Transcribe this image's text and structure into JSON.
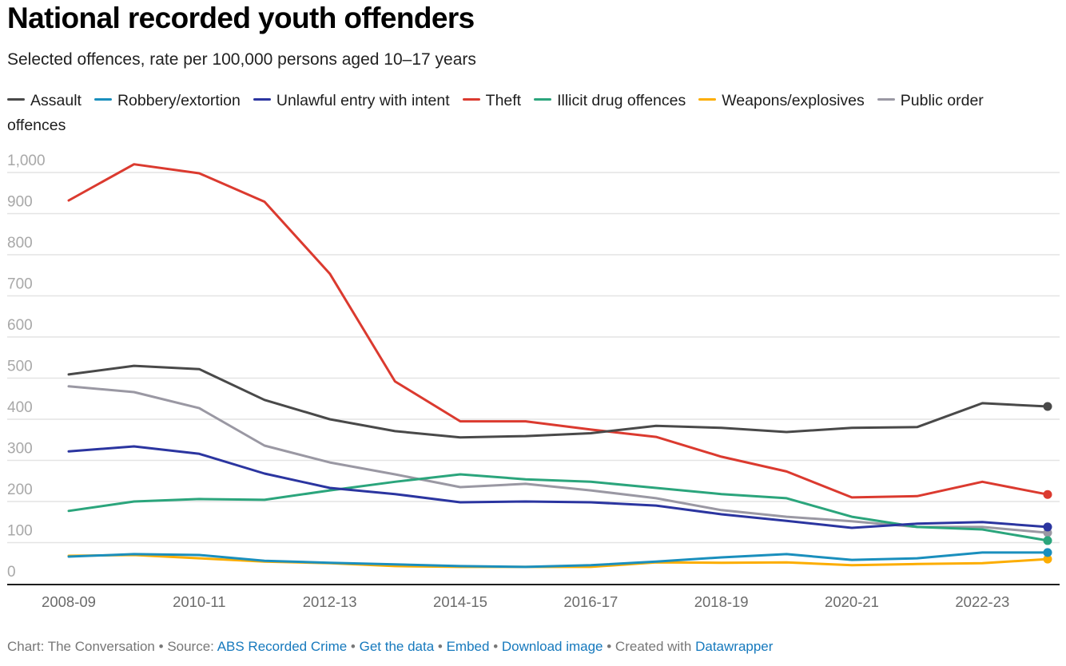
{
  "header": {
    "title": "National recorded youth offenders",
    "subtitle": "Selected offences, rate per 100,000 persons aged 10–17 years"
  },
  "footer": {
    "chart_prefix": "Chart: The Conversation",
    "sep1": " • ",
    "source_prefix": "Source: ",
    "source_link": "ABS Recorded Crime",
    "sep2": " • ",
    "get_data": "Get the data",
    "sep3": " • ",
    "embed": "Embed",
    "sep4": "  • ",
    "download": "Download image",
    "sep5": " • ",
    "created_prefix": "Created with ",
    "created_link": "Datawrapper"
  },
  "chart_data": {
    "type": "line",
    "title": "National recorded youth offenders",
    "subtitle": "Selected offences, rate per 100,000 persons aged 10–17 years",
    "xlabel": "",
    "ylabel": "",
    "ylim": [
      0,
      1000
    ],
    "yticks": [
      0,
      100,
      200,
      300,
      400,
      500,
      600,
      700,
      800,
      900,
      1000
    ],
    "ytick_labels": [
      "0",
      "100",
      "200",
      "300",
      "400",
      "500",
      "600",
      "700",
      "800",
      "900",
      "1,000"
    ],
    "grid": true,
    "legend_position": "top",
    "x": [
      "2008-09",
      "2009-10",
      "2010-11",
      "2011-12",
      "2012-13",
      "2013-14",
      "2014-15",
      "2015-16",
      "2016-17",
      "2017-18",
      "2018-19",
      "2019-20",
      "2020-21",
      "2021-22",
      "2022-23",
      "2023-24"
    ],
    "xtick_labels": [
      "2008-09",
      "2010-11",
      "2012-13",
      "2014-15",
      "2016-17",
      "2018-19",
      "2020-21",
      "2022-23"
    ],
    "series": [
      {
        "name": "Assault",
        "color": "#494949",
        "values": [
          509,
          530,
          522,
          447,
          400,
          371,
          356,
          359,
          366,
          384,
          379,
          369,
          379,
          381,
          439,
          431
        ]
      },
      {
        "name": "Robbery/extortion",
        "color": "#1a8fbd",
        "values": [
          66,
          72,
          70,
          56,
          51,
          47,
          43,
          41,
          45,
          54,
          64,
          72,
          58,
          62,
          76,
          76
        ]
      },
      {
        "name": "Unlawful entry with intent",
        "color": "#2b35a0",
        "values": [
          322,
          334,
          316,
          268,
          233,
          218,
          198,
          200,
          198,
          190,
          169,
          153,
          136,
          146,
          150,
          138
        ]
      },
      {
        "name": "Theft",
        "color": "#db3a2f",
        "values": [
          932,
          1020,
          998,
          929,
          754,
          492,
          395,
          395,
          375,
          357,
          309,
          273,
          210,
          213,
          248,
          217
        ]
      },
      {
        "name": "Illicit drug offences",
        "color": "#2ba57c",
        "values": [
          177,
          200,
          206,
          204,
          227,
          248,
          266,
          254,
          248,
          233,
          218,
          208,
          163,
          138,
          132,
          105
        ]
      },
      {
        "name": "Weapons/explosives",
        "color": "#fcad00",
        "values": [
          68,
          70,
          62,
          54,
          50,
          43,
          41,
          41,
          41,
          52,
          51,
          52,
          45,
          48,
          50,
          60
        ]
      },
      {
        "name": "Public order offences",
        "color": "#9a98a3",
        "values": [
          480,
          466,
          427,
          336,
          295,
          266,
          235,
          243,
          227,
          208,
          179,
          163,
          152,
          138,
          138,
          124
        ]
      }
    ]
  }
}
